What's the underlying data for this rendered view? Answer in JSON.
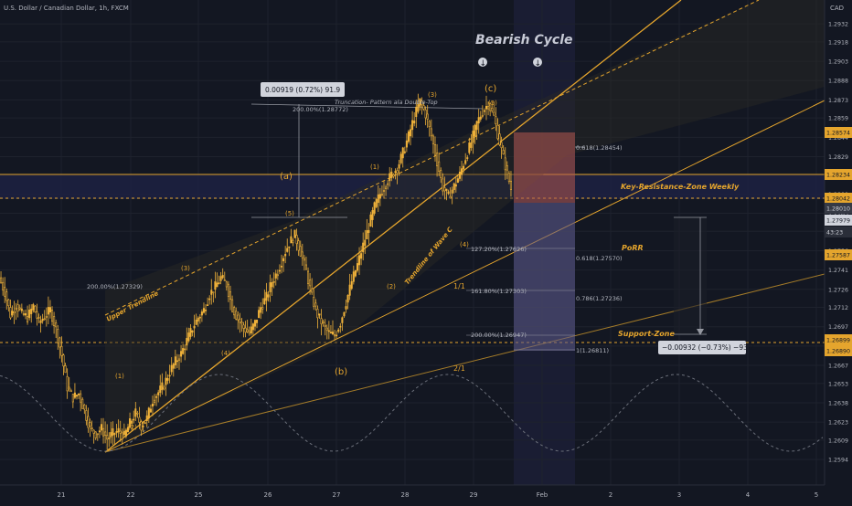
{
  "header": {
    "title": "U.S. Dollar / Canadian Dollar, 1h, FXCM",
    "currency": "CAD"
  },
  "colors": {
    "background": "#131722",
    "candle": "#f0b23a",
    "trendline": "#e5a52d",
    "grid": "#1e222d",
    "axis_text": "#b2b5be",
    "zone_band": "#1d2040",
    "risk_zone": "#b5584e",
    "target_zone": "#5d5a86",
    "measure_box": "#d1d4dc"
  },
  "chart_data": {
    "type": "candlestick",
    "symbol": "USDCAD",
    "timeframe": "1h",
    "ylim": [
      1.2577,
      1.2947
    ],
    "x_ticks": [
      "21",
      "22",
      "25",
      "26",
      "27",
      "28",
      "29",
      "Feb",
      "2",
      "3",
      "4",
      "5"
    ],
    "y_ticks": [
      1.2594,
      1.2609,
      1.2623,
      1.2638,
      1.2653,
      1.2667,
      1.2682,
      1.2697,
      1.2712,
      1.2726,
      1.2741,
      1.2756,
      1.2771,
      1.2785,
      1.28,
      1.2815,
      1.2829,
      1.2844,
      1.2859,
      1.2873,
      1.2888,
      1.2903,
      1.2918,
      1.2932
    ],
    "price_tags": [
      {
        "value": "1.28574",
        "kind": "orange"
      },
      {
        "value": "1.28234",
        "kind": "orange"
      },
      {
        "value": "1.28042",
        "kind": "orange"
      },
      {
        "value": "1.28010",
        "kind": "dark"
      },
      {
        "value": "1.27979",
        "kind": "white"
      },
      {
        "value": "43:23",
        "kind": "dark-small"
      },
      {
        "value": "1.27587",
        "kind": "orange"
      },
      {
        "value": "1.26899",
        "kind": "orange"
      },
      {
        "value": "1.26890",
        "kind": "orange"
      }
    ],
    "price_path": [
      [
        1.2735,
        1.2724
      ],
      [
        1.2724,
        1.2706
      ],
      [
        1.2706,
        1.2714
      ],
      [
        1.2714,
        1.2707
      ],
      [
        1.2707,
        1.2704
      ],
      [
        1.2704,
        1.2713
      ],
      [
        1.2713,
        1.27
      ],
      [
        1.27,
        1.2705
      ],
      [
        1.2705,
        1.271
      ],
      [
        1.271,
        1.2695
      ],
      [
        1.2695,
        1.2675
      ],
      [
        1.2675,
        1.265
      ],
      [
        1.265,
        1.2642
      ],
      [
        1.2642,
        1.2645
      ],
      [
        1.2645,
        1.2632
      ],
      [
        1.2632,
        1.2618
      ],
      [
        1.2618,
        1.2614
      ],
      [
        1.2614,
        1.2618
      ],
      [
        1.2618,
        1.261
      ],
      [
        1.261,
        1.2614
      ],
      [
        1.2614,
        1.2616
      ],
      [
        1.2616,
        1.2612
      ],
      [
        1.2612,
        1.2622
      ],
      [
        1.2622,
        1.263
      ],
      [
        1.263,
        1.262
      ],
      [
        1.262,
        1.2626
      ],
      [
        1.2626,
        1.264
      ],
      [
        1.264,
        1.2646
      ],
      [
        1.2646,
        1.2652
      ],
      [
        1.2652,
        1.2662
      ],
      [
        1.2662,
        1.267
      ],
      [
        1.267,
        1.2676
      ],
      [
        1.2676,
        1.2686
      ],
      [
        1.2686,
        1.2696
      ],
      [
        1.2696,
        1.2704
      ],
      [
        1.2704,
        1.271
      ],
      [
        1.271,
        1.2722
      ],
      [
        1.2722,
        1.2728
      ],
      [
        1.2728,
        1.2735
      ],
      [
        1.2735,
        1.273
      ],
      [
        1.273,
        1.2712
      ],
      [
        1.2712,
        1.2703
      ],
      [
        1.2703,
        1.2696
      ],
      [
        1.2696,
        1.2692
      ],
      [
        1.2692,
        1.27
      ],
      [
        1.27,
        1.2712
      ],
      [
        1.2712,
        1.272
      ],
      [
        1.272,
        1.2732
      ],
      [
        1.2732,
        1.274
      ],
      [
        1.274,
        1.2752
      ],
      [
        1.2752,
        1.2762
      ],
      [
        1.2762,
        1.2768
      ],
      [
        1.2768,
        1.2755
      ],
      [
        1.2755,
        1.274
      ],
      [
        1.274,
        1.272
      ],
      [
        1.272,
        1.2706
      ],
      [
        1.2706,
        1.2698
      ],
      [
        1.2698,
        1.2692
      ],
      [
        1.2692,
        1.269
      ],
      [
        1.269,
        1.27
      ],
      [
        1.27,
        1.2716
      ],
      [
        1.2716,
        1.2732
      ],
      [
        1.2732,
        1.2745
      ],
      [
        1.2745,
        1.276
      ],
      [
        1.276,
        1.2775
      ],
      [
        1.2775,
        1.279
      ],
      [
        1.279,
        1.28
      ],
      [
        1.28,
        1.2808
      ],
      [
        1.2808,
        1.2815
      ],
      [
        1.2815,
        1.282
      ],
      [
        1.282,
        1.2832
      ],
      [
        1.2832,
        1.2845
      ],
      [
        1.2845,
        1.286
      ],
      [
        1.286,
        1.2872
      ],
      [
        1.2872,
        1.2862
      ],
      [
        1.2862,
        1.2845
      ],
      [
        1.2845,
        1.2825
      ],
      [
        1.2825,
        1.2805
      ],
      [
        1.2805,
        1.2798
      ],
      [
        1.2798,
        1.2806
      ],
      [
        1.2806,
        1.2815
      ],
      [
        1.2815,
        1.2828
      ],
      [
        1.2828,
        1.284
      ],
      [
        1.284,
        1.2855
      ],
      [
        1.2855,
        1.2864
      ],
      [
        1.2864,
        1.287
      ],
      [
        1.287,
        1.286
      ],
      [
        1.286,
        1.284
      ],
      [
        1.284,
        1.2822
      ],
      [
        1.2822,
        1.2804
      ]
    ],
    "annotations": {
      "title": "Bearish Cycle",
      "measure_up": "0.00919 (0.72%) 91.9",
      "measure_down": "−0.00932 (−0.73%) −93.2",
      "truncation": "Truncation- Pattern ala Double-Top",
      "fib_200_top": "200.00%(1.28772)",
      "fib_200_left": "200.00%(1.27329)",
      "fib_127": "127.20%(1.27626)",
      "fib_161": "161.80%(1.27303)",
      "fib_200_bot": "200.00%(1.26947)",
      "fib_1": "1(1.26811)",
      "fib_618a": "0.618(1.28454)",
      "fib_618b": "0.618(1.27570)",
      "fib_786": "0.786(1.27236)",
      "key_resistance": "Key-Resistance-Zone Weekly",
      "porr": "PoRR",
      "support": "Support-Zone",
      "upper_trendline": "Upper Trendline",
      "trendline_c": "Trendline of Wave C",
      "wave_a": "(a)",
      "wave_b": "(b)",
      "wave_c": "(c)",
      "wave_5a": "(5)",
      "wave_5b": "(5)",
      "wave_3a": "(3)",
      "wave_3b": "(3)",
      "wave_1a": "(1)",
      "wave_1b": "(1)",
      "wave_2a": "(2)",
      "wave_2b": "(2)",
      "wave_4a": "(4)",
      "wave_4b": "(4)",
      "ratio_half": "1/1",
      "ratio_two": "2/1",
      "arrow_down": "↓"
    }
  }
}
